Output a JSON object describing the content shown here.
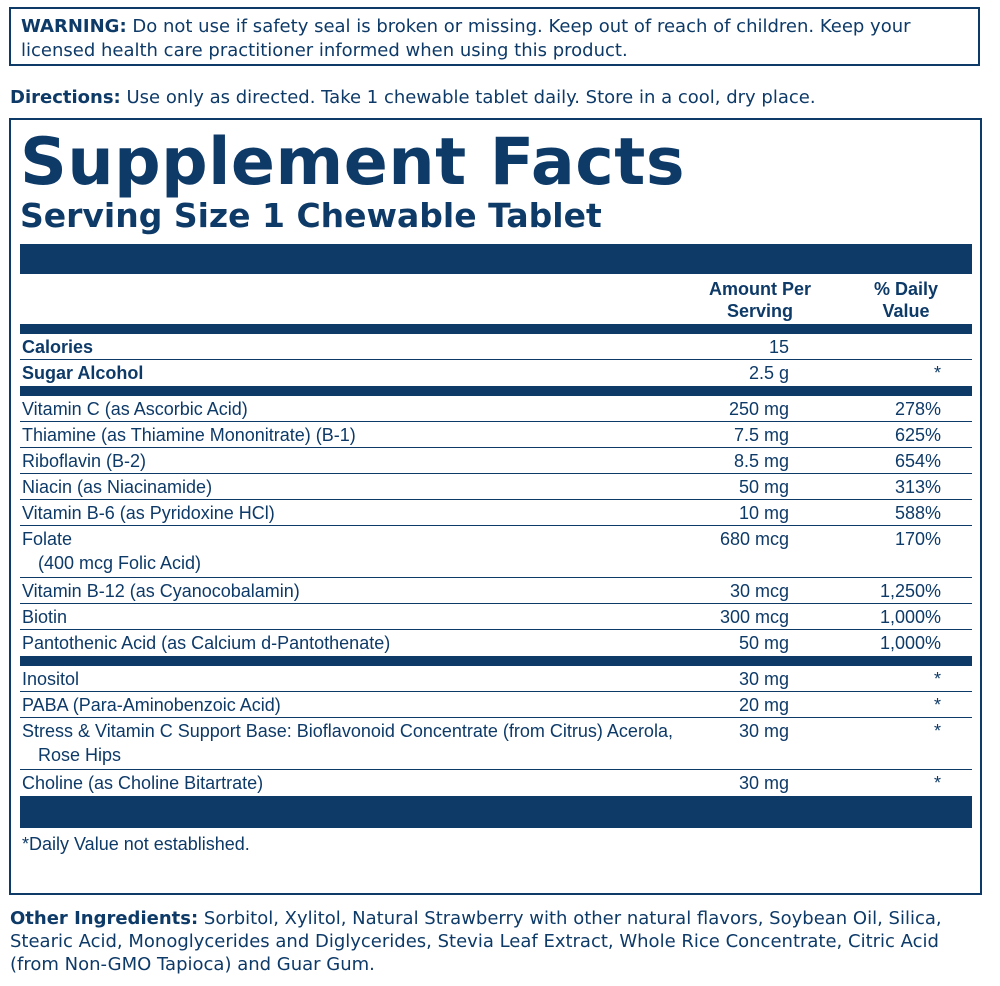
{
  "warning": {
    "label": "WARNING:",
    "text": "Do not use if safety seal is broken or missing. Keep out of reach of children. Keep your licensed health care practitioner informed when using this product."
  },
  "directions": {
    "label": "Directions:",
    "text": "Use only as directed. Take 1 chewable tablet daily. Store in a cool, dry place."
  },
  "facts": {
    "title": "Supplement Facts",
    "serving_size": "Serving Size 1 Chewable Tablet",
    "col_amount_line1": "Amount Per",
    "col_amount_line2": "Serving",
    "col_dv_line1": "% Daily",
    "col_dv_line2": "Value",
    "group1": [
      {
        "name": "Calories",
        "amount": "15",
        "dv": ""
      },
      {
        "name": "Sugar Alcohol",
        "amount": "2.5 g",
        "dv": "*"
      }
    ],
    "group2": [
      {
        "name": "Vitamin C (as Ascorbic Acid)",
        "amount": "250 mg",
        "dv": "278%"
      },
      {
        "name": "Thiamine (as Thiamine Mononitrate) (B-1)",
        "amount": "7.5 mg",
        "dv": "625%"
      },
      {
        "name": "Riboflavin (B-2)",
        "amount": "8.5 mg",
        "dv": "654%"
      },
      {
        "name": "Niacin (as Niacinamide)",
        "amount": "50 mg",
        "dv": "313%"
      },
      {
        "name": "Vitamin B-6 (as Pyridoxine HCl)",
        "amount": "10 mg",
        "dv": "588%"
      },
      {
        "name": "Folate",
        "sub": "(400 mcg Folic Acid)",
        "amount": "680 mcg",
        "dv": "170%"
      },
      {
        "name": "Vitamin B-12 (as Cyanocobalamin)",
        "amount": "30 mcg",
        "dv": "1,250%"
      },
      {
        "name": "Biotin",
        "amount": "300 mcg",
        "dv": "1,000%"
      },
      {
        "name": "Pantothenic Acid (as Calcium d-Pantothenate)",
        "amount": "50 mg",
        "dv": "1,000%"
      }
    ],
    "group3": [
      {
        "name": "Inositol",
        "amount": "30 mg",
        "dv": "*"
      },
      {
        "name": "PABA (Para-Aminobenzoic Acid)",
        "amount": "20 mg",
        "dv": "*"
      },
      {
        "name": "Stress & Vitamin C Support Base: Bioflavonoid Concentrate (from Citrus) Acerola,",
        "sub": "Rose Hips",
        "amount": "30 mg",
        "dv": "*"
      },
      {
        "name": "Choline (as Choline Bitartrate)",
        "amount": "30 mg",
        "dv": "*"
      }
    ],
    "footnote": "*Daily Value not established."
  },
  "other_ingredients": {
    "label": "Other Ingredients:",
    "text": "Sorbitol, Xylitol, Natural Strawberry with other natural flavors, Soybean Oil, Silica, Stearic Acid, Monoglycerides and Diglycerides, Stevia Leaf Extract, Whole Rice Concentrate, Citric Acid (from Non-GMO Tapioca) and Guar Gum."
  },
  "colors": {
    "ink": "#0e3a68",
    "background": "#ffffff"
  }
}
